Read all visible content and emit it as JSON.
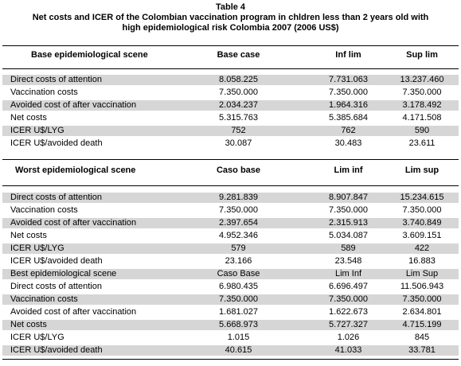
{
  "title": {
    "line1": "Table 4",
    "line2": "Net costs and ICER of the Colombian vaccination program in chldren less than 2 years old with",
    "line3": "high epidemiological risk Colombia 2007 (2006 US$)"
  },
  "sections": [
    {
      "header": [
        "Base epidemiological scene",
        "Base case",
        "Inf lim",
        "Sup lim"
      ],
      "rows": [
        [
          "Direct costs of attention",
          "8.058.225",
          "7.731.063",
          "13.237.460"
        ],
        [
          "Vaccination costs",
          "7.350.000",
          "7.350.000",
          "7.350.000"
        ],
        [
          "Avoided cost of after vaccination",
          "2.034.237",
          "1.964.316",
          "3.178.492"
        ],
        [
          "Net costs",
          "5.315.763",
          "5.385.684",
          "4.171.508"
        ],
        [
          "ICER  U$/LYG",
          "752",
          "762",
          "590"
        ],
        [
          "ICER  U$/avoided  death",
          "30.087",
          "30.483",
          "23.611"
        ]
      ]
    },
    {
      "header": [
        "Worst epidemiological scene",
        "Caso base",
        "Lim inf",
        "Lim sup"
      ],
      "rows": [
        [
          "Direct costs of attention",
          "9.281.839",
          "8.907.847",
          "15.234.615"
        ],
        [
          "Vaccination costs",
          "7.350.000",
          "7.350.000",
          "7.350.000"
        ],
        [
          "Avoided cost of after vaccination",
          "2.397.654",
          "2.315.913",
          "3.740.849"
        ],
        [
          "Net costs",
          "4.952.346",
          "5.034.087",
          "3.609.151"
        ],
        [
          "ICER  U$/LYG",
          "579",
          "589",
          "422"
        ],
        [
          "ICER  U$/avoided  death",
          "23.166",
          "23.548",
          "16.883"
        ]
      ]
    },
    {
      "header": [
        "Best epidemiological scene",
        "Caso Base",
        "Lim Inf",
        "Lim Sup"
      ],
      "rows": [
        [
          "Direct costs of attention",
          "6.980.435",
          "6.696.497",
          "11.506.943"
        ],
        [
          "Vaccination costs",
          "7.350.000",
          "7.350.000",
          "7.350.000"
        ],
        [
          "Avoided cost of after vaccination",
          "1.681.027",
          "1.622.673",
          "2.634.801"
        ],
        [
          "Net costs",
          "5.668.973",
          "5.727.327",
          "4.715.199"
        ],
        [
          "ICER  U$/LYG",
          "1.015",
          "1.026",
          "845"
        ],
        [
          "ICER  U$/avoided  death",
          "40.615",
          "41.033",
          "33.781"
        ]
      ]
    }
  ]
}
